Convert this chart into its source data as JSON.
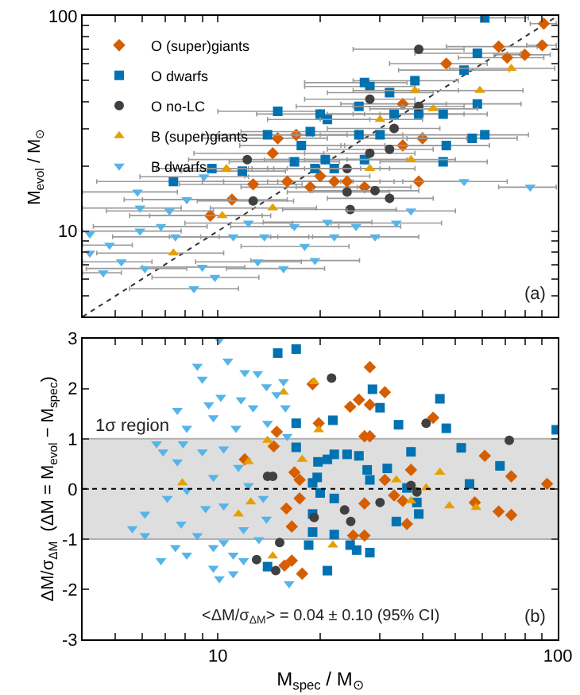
{
  "chart_data": [
    {
      "type": "scatter",
      "ylabel": "M$_{evol}$ / M$_{⊙}$",
      "log": "xy",
      "grid": false,
      "legend": "top left",
      "tick_labels": "y",
      "xlim": [
        4,
        100
      ],
      "ylim": [
        4,
        100
      ],
      "xticks": [
        {
          "value": 5,
          "label": null
        },
        {
          "value": 6,
          "label": null
        },
        {
          "value": 7,
          "label": null
        },
        {
          "value": 8,
          "label": null
        },
        {
          "value": 9,
          "label": null
        },
        10,
        {
          "value": 20,
          "label": null
        },
        {
          "value": 30,
          "label": null
        },
        {
          "value": 40,
          "label": null
        },
        {
          "value": 50,
          "label": null
        },
        {
          "value": 60,
          "label": null
        },
        {
          "value": 70,
          "label": null
        },
        {
          "value": 80,
          "label": null
        },
        {
          "value": 90,
          "label": null
        },
        100
      ],
      "yticks": [
        {
          "value": 5,
          "label": null
        },
        {
          "value": 6,
          "label": null
        },
        {
          "value": 7,
          "label": null
        },
        {
          "value": 8,
          "label": null
        },
        {
          "value": 9,
          "label": null
        },
        10,
        {
          "value": 20,
          "label": null
        },
        {
          "value": 30,
          "label": null
        },
        {
          "value": 40,
          "label": null
        },
        {
          "value": 50,
          "label": null
        },
        {
          "value": 60,
          "label": null
        },
        {
          "value": 70,
          "label": null
        },
        {
          "value": 80,
          "label": null
        },
        {
          "value": 90,
          "label": null
        },
        100
      ],
      "annotations": [
        "(a)"
      ],
      "series": [
        {
          "type": "line",
          "color": "#333333",
          "line_style": "dotted",
          "marker": "none",
          "x": [
            4,
            100
          ],
          "values": [
            4,
            100
          ]
        },
        {
          "name": "O (super)giants",
          "color": "#d55e00",
          "marker": "diamond",
          "x": [
            91,
            90,
            67,
            71,
            80,
            47,
            35,
            40,
            35,
            15,
            17,
            14.5,
            20,
            22,
            18.7,
            11,
            9.5,
            39,
            27,
            24,
            16,
            12.7
          ],
          "values": [
            92,
            73,
            72,
            64,
            66,
            60,
            39,
            27,
            25,
            27,
            28,
            23,
            18,
            17,
            16,
            14,
            11.8,
            17,
            16,
            17,
            17,
            16.5
          ],
          "xerrors": [
            8,
            9,
            20,
            20,
            15,
            15,
            12,
            14,
            12,
            6,
            7,
            6,
            8,
            8,
            7,
            5,
            4,
            14,
            10,
            9,
            7,
            5
          ]
        },
        {
          "name": "O dwarfs",
          "color": "#0072b2",
          "marker": "square",
          "x": [
            61,
            58,
            53,
            58,
            38,
            32,
            27,
            28,
            26,
            21,
            20,
            15,
            18.7,
            14,
            17.6,
            20.7,
            16.8,
            19.3,
            22,
            26,
            30,
            33,
            39,
            46,
            47,
            56,
            61,
            46,
            11.8,
            9.6,
            7.4,
            27
          ],
          "values": [
            98,
            67,
            56,
            39,
            50,
            44,
            49,
            47,
            38,
            33,
            35,
            36,
            29,
            28,
            25,
            21.5,
            21,
            19.5,
            19.5,
            28,
            28,
            35,
            35,
            35,
            25,
            27,
            28,
            21,
            19,
            19.5,
            17,
            21.5
          ],
          "xerrors": [
            21,
            20,
            19,
            20,
            13,
            11,
            9,
            10,
            9,
            7,
            7,
            5,
            7,
            5,
            6,
            7,
            6,
            7,
            8,
            9,
            10,
            12,
            14,
            16,
            16,
            20,
            21,
            16,
            4,
            3,
            3,
            9
          ]
        },
        {
          "name": "O no-LC",
          "color": "#404040",
          "marker": "circle",
          "x": [
            39,
            39,
            33,
            28,
            32,
            28,
            24,
            29,
            24,
            32,
            24.5,
            12.7,
            12.2
          ],
          "values": [
            70,
            38,
            30,
            41,
            24,
            23,
            19.5,
            15.4,
            15.2,
            14.2,
            12.6,
            13.8,
            21.5
          ],
          "xerrors": [
            14,
            14,
            12,
            10,
            11,
            10,
            8,
            10,
            8,
            11,
            9,
            4,
            4
          ]
        },
        {
          "name": "B (super)giants",
          "color": "#e69f00",
          "marker": "triangle",
          "x": [
            73,
            59,
            38,
            30,
            43,
            37,
            28,
            10.6,
            10.3,
            14.5,
            7.4
          ],
          "values": [
            57,
            45,
            45,
            33,
            37,
            21.5,
            19.5,
            19.5,
            11.8,
            12.8,
            7.9
          ],
          "xerrors": [
            25,
            20,
            13,
            10,
            15,
            13,
            10,
            4,
            4,
            5,
            3
          ]
        },
        {
          "name": "B dwarfs",
          "color": "#56b4e9",
          "marker": "triangle-down",
          "x": [
            83,
            53,
            8.5,
            9.8,
            15.6,
            13.1,
            9,
            6.1,
            4.6,
            5.2,
            4.2,
            4.8,
            5.9,
            6.8,
            7.5,
            5.9,
            7.2,
            5.8,
            9.1,
            8.1,
            11.1,
            13.7,
            16.8,
            19.3,
            18,
            22,
            25.5,
            29,
            33.5,
            37,
            21,
            12.3,
            4.2
          ],
          "values": [
            16,
            17,
            5.4,
            6.1,
            6.7,
            7.2,
            6.8,
            6.7,
            6.4,
            7.2,
            9.7,
            8.6,
            10,
            10.5,
            9.4,
            12.8,
            12.4,
            15.2,
            17.9,
            14,
            9.4,
            9.4,
            10.5,
            7.3,
            8.5,
            9.4,
            10.5,
            9.4,
            10.9,
            12.4,
            11,
            10.9,
            7.9
          ],
          "xerrors": [
            16,
            18,
            3,
            3.4,
            5,
            4.5,
            3,
            2,
            0.6,
            1.2,
            null,
            0.8,
            1.9,
            2.5,
            2.6,
            1.9,
            2.5,
            1.8,
            3.2,
            2.8,
            3.9,
            4.8,
            5.9,
            6.8,
            6.3,
            7.7,
            9,
            10,
            12,
            13,
            7.4,
            4.3,
            null
          ]
        }
      ]
    },
    {
      "type": "scatter",
      "xlabel": "M$_{spec}$ / M$_{⊙}$",
      "ylabel": "ΔM/σ$_{ΔM}$  (ΔM = M$_{evol}$ − M$_{spec}$)",
      "log": "x",
      "grid": false,
      "xlim": [
        4,
        100
      ],
      "ylim": [
        -3,
        3
      ],
      "xticks": [
        {
          "value": 5,
          "label": null
        },
        {
          "value": 6,
          "label": null
        },
        {
          "value": 7,
          "label": null
        },
        {
          "value": 8,
          "label": null
        },
        {
          "value": 9,
          "label": null
        },
        10,
        {
          "value": 20,
          "label": null
        },
        {
          "value": 30,
          "label": null
        },
        {
          "value": 40,
          "label": null
        },
        {
          "value": 50,
          "label": null
        },
        {
          "value": 60,
          "label": null
        },
        {
          "value": 70,
          "label": null
        },
        {
          "value": 80,
          "label": null
        },
        {
          "value": 90,
          "label": null
        },
        100
      ],
      "yticks": [
        -3,
        -2,
        -1,
        0,
        1,
        2,
        3
      ],
      "bands": [
        {
          "axis": "y",
          "from": -1,
          "to": 1,
          "label": "1σ region",
          "color": "#dedede"
        }
      ],
      "ref_lines": [
        {
          "axis": "y",
          "value": 0,
          "color": "#000000",
          "line_style": "dotted"
        }
      ],
      "annotations": [
        "<ΔM/σ$_{ΔM}$> = 0.04 ± 0.10 (95% CI)",
        "(b)"
      ],
      "series": [
        {
          "color": "#d55e00",
          "marker": "diamond",
          "x": [
            93,
            73,
            73,
            67,
            61,
            57,
            43,
            37,
            35,
            36,
            33,
            31,
            28,
            27,
            31,
            28,
            28,
            26,
            24.5,
            27,
            25,
            27,
            19.8,
            19,
            17.7,
            16.5,
            15.7,
            14.9,
            14.6,
            16.8,
            17.4,
            16.5,
            15.9,
            12,
            17.4
          ],
          "values": [
            0.1,
            -0.52,
            0.25,
            -0.45,
            0.66,
            -0.27,
            1.42,
            0.38,
            -0.24,
            -0.7,
            -0.13,
            0.18,
            1.05,
            1.05,
            1.93,
            1.68,
            2.43,
            1.78,
            1.64,
            -0.93,
            -0.93,
            -0.29,
            1.31,
            2.09,
            -1.69,
            -1.43,
            -1.53,
            1.14,
            0.85,
            0.33,
            0.18,
            -0.75,
            -0.39,
            0.59,
            -0.19
          ]
        },
        {
          "color": "#0072b2",
          "marker": "square",
          "x": [
            99,
            67.6,
            55,
            52,
            45,
            47,
            39,
            38.5,
            37,
            34,
            30,
            31.5,
            28.5,
            28,
            28,
            26,
            25.6,
            24.5,
            21.8,
            21,
            22,
            22,
            21,
            19.7,
            19,
            19,
            19.6,
            20,
            17,
            15,
            17,
            17,
            18.5,
            14,
            22,
            24,
            27.5,
            33.5,
            36,
            19
          ],
          "values": [
            1.18,
            0.46,
            0.1,
            0.82,
            1.8,
            1.21,
            -0.5,
            -0.27,
            0.74,
            1.28,
            1.62,
            0.41,
            1.99,
            0.18,
            -1.27,
            0.66,
            -1.22,
            -1.12,
            1.37,
            -1.63,
            -0.91,
            0.69,
            0.59,
            0.54,
            -0.5,
            0.12,
            0.23,
            -0.08,
            2.79,
            2.71,
            1.31,
            0.83,
            -1.12,
            -1.55,
            -0.19,
            0.69,
            0.38,
            -0.65,
            0.02,
            -0.86
          ]
        },
        {
          "color": "#404040",
          "marker": "circle",
          "x": [
            72,
            41,
            38.5,
            37,
            30,
            23.6,
            24.6,
            21.6,
            19.2,
            14.5,
            14,
            15.2,
            14.8,
            13
          ],
          "values": [
            0.97,
            1.31,
            -0.06,
            0.07,
            -0.27,
            -0.42,
            -0.65,
            2.21,
            -0.57,
            0.25,
            0.25,
            -1.07,
            -1.63,
            -1.41
          ]
        },
        {
          "color": "#e69f00",
          "marker": "triangle",
          "x": [
            57.5,
            48,
            45,
            37,
            33.5,
            41,
            21.8,
            19.8,
            19.2,
            15.6,
            17.7,
            14,
            12.3,
            12.5,
            14.5,
            7.86,
            11.5
          ],
          "values": [
            -0.37,
            -0.34,
            0.33,
            -0.24,
            0.18,
            0.02,
            -1.12,
            1.18,
            2.14,
            1.93,
            0.59,
            0.97,
            0.54,
            -0.26,
            -1.34,
            0.12,
            -0.5
          ]
        },
        {
          "color": "#56b4e9",
          "marker": "triangle-down",
          "x": [
            10.1,
            8.7,
            9,
            10.7,
            12,
            13.1,
            13.9,
            15.6,
            14.9,
            15.8,
            12.7,
            11.7,
            10.2,
            9.4,
            7.6,
            8.1,
            9.7,
            11.3,
            14,
            16,
            6.6,
            7.9,
            7.6,
            6.9,
            9,
            10.4,
            11.5,
            9.7,
            8.1,
            9.2,
            10.4,
            7.1,
            6.1,
            5.6,
            6.1,
            7.8,
            8.7,
            7.5,
            6.8,
            8.1,
            9.7,
            10.4,
            11.1,
            11.9,
            9.7,
            10.1,
            11.1,
            11.9,
            13.2,
            13.9,
            16.2,
            13.6,
            12.3
          ],
          "values": [
            2.97,
            2.45,
            2.19,
            2.55,
            2.32,
            2.3,
            2.04,
            2.14,
            1.88,
            1.62,
            1.62,
            1.78,
            1.83,
            1.68,
            1.57,
            1.21,
            1.42,
            1.21,
            1.31,
            1.05,
            0.9,
            0.9,
            0.54,
            0.74,
            0.74,
            0.8,
            0.43,
            0.23,
            -0.03,
            -0.39,
            -0.34,
            -0.19,
            -0.5,
            -0.79,
            -0.93,
            -0.7,
            -0.93,
            -1.17,
            -1.43,
            -1.32,
            -1.17,
            -1.07,
            -1.32,
            -0.81,
            -1.58,
            -1.79,
            -1.69,
            -1.43,
            -1.01,
            -0.6,
            -1.89,
            -0.19,
            0.07
          ]
        }
      ]
    }
  ]
}
